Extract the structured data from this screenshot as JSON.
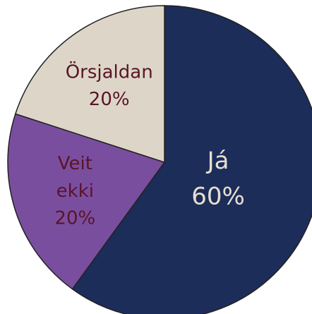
{
  "chart_data": {
    "type": "pie",
    "categories": [
      "Já",
      "Veit ekki",
      "Örsjaldan"
    ],
    "values": [
      60,
      20,
      20
    ],
    "value_labels": [
      "60%",
      "20%",
      "20%"
    ],
    "colors": [
      "#1d2d59",
      "#7a4e9f",
      "#ddd6c8"
    ],
    "label_colors": [
      "#e6dfd0",
      "#5a1428",
      "#5a1428"
    ],
    "start_angle": 0,
    "direction": "clockwise"
  }
}
